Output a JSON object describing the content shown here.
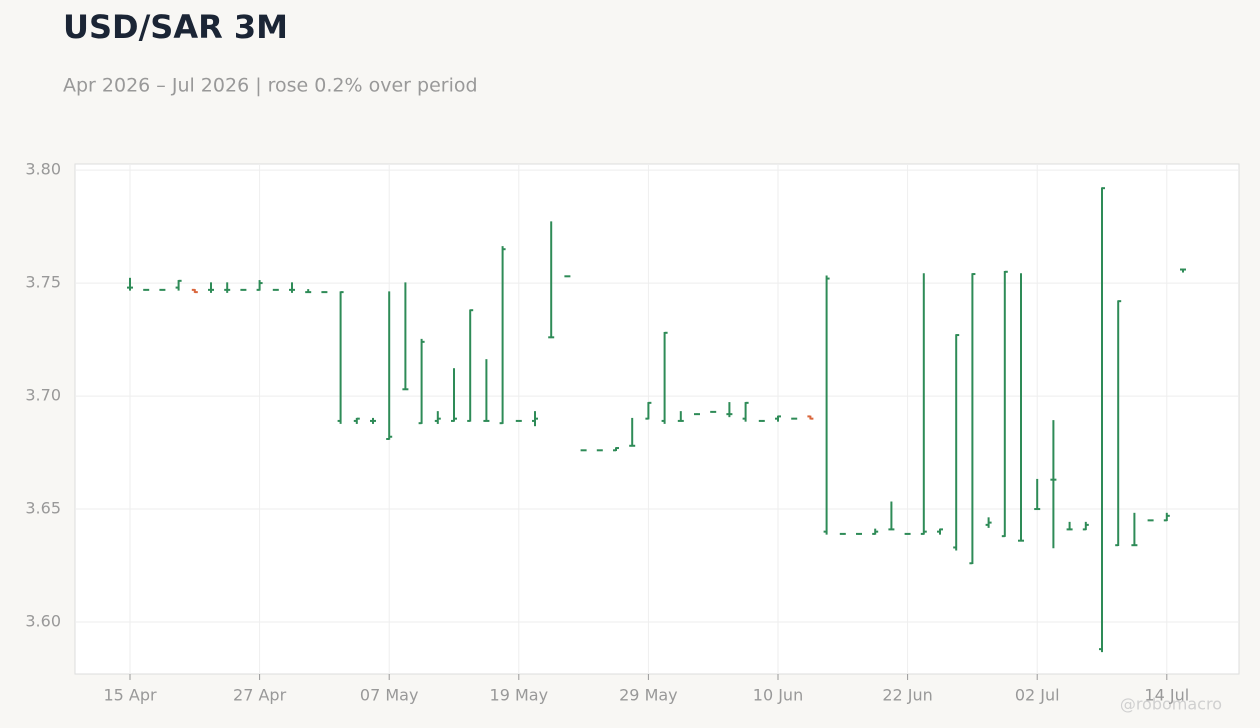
{
  "chart_data": {
    "type": "ohlc",
    "title": "USD/SAR 3M",
    "subtitle": "Apr 2026 – Jul 2026 | rose 0.2% over period",
    "watermark": "@robomacro",
    "categories": [
      "15 Apr",
      null,
      null,
      null,
      null,
      null,
      null,
      null,
      "27 Apr",
      null,
      null,
      null,
      null,
      null,
      null,
      null,
      "07 May",
      null,
      null,
      null,
      null,
      null,
      null,
      null,
      "19 May",
      null,
      null,
      null,
      null,
      null,
      null,
      null,
      "29 May",
      null,
      null,
      null,
      null,
      null,
      null,
      null,
      "10 Jun",
      null,
      null,
      null,
      null,
      null,
      null,
      null,
      "22 Jun",
      null,
      null,
      null,
      null,
      null,
      null,
      null,
      "02 Jul",
      null,
      null,
      null,
      null,
      null,
      null,
      null,
      "14 Jul",
      null
    ],
    "series": [
      {
        "up_color": "#2e8b57",
        "down_color": "#d9663c",
        "open": [
          3.748,
          3.747,
          3.747,
          3.748,
          3.747,
          3.747,
          3.747,
          3.747,
          3.747,
          3.747,
          3.747,
          3.746,
          3.746,
          3.689,
          3.689,
          3.689,
          3.681,
          3.703,
          3.688,
          3.689,
          3.689,
          3.689,
          3.689,
          3.688,
          3.689,
          3.689,
          3.726,
          3.753,
          3.676,
          3.676,
          3.676,
          3.678,
          3.69,
          3.689,
          3.689,
          3.692,
          3.693,
          3.692,
          3.69,
          3.689,
          3.69,
          3.69,
          3.691,
          3.64,
          3.639,
          3.639,
          3.639,
          3.641,
          3.639,
          3.639,
          3.64,
          3.633,
          3.626,
          3.643,
          3.638,
          3.636,
          3.65,
          3.663,
          3.641,
          3.641,
          3.588,
          3.634,
          3.634,
          3.645,
          3.645,
          3.756
        ],
        "high": [
          3.752,
          3.747,
          3.747,
          3.751,
          3.747,
          3.75,
          3.75,
          3.747,
          3.751,
          3.747,
          3.75,
          3.747,
          3.746,
          3.746,
          3.69,
          3.69,
          3.746,
          3.75,
          3.725,
          3.693,
          3.712,
          3.738,
          3.716,
          3.766,
          3.689,
          3.693,
          3.777,
          3.753,
          3.676,
          3.676,
          3.677,
          3.69,
          3.697,
          3.728,
          3.693,
          3.692,
          3.693,
          3.697,
          3.697,
          3.689,
          3.691,
          3.69,
          3.691,
          3.753,
          3.639,
          3.639,
          3.641,
          3.653,
          3.639,
          3.754,
          3.641,
          3.727,
          3.754,
          3.646,
          3.755,
          3.754,
          3.663,
          3.689,
          3.644,
          3.644,
          3.792,
          3.742,
          3.648,
          3.645,
          3.648,
          3.756
        ],
        "low": [
          3.747,
          3.747,
          3.747,
          3.747,
          3.746,
          3.746,
          3.746,
          3.747,
          3.747,
          3.747,
          3.746,
          3.746,
          3.746,
          3.688,
          3.688,
          3.688,
          3.681,
          3.703,
          3.688,
          3.688,
          3.689,
          3.689,
          3.689,
          3.688,
          3.689,
          3.687,
          3.726,
          3.753,
          3.676,
          3.676,
          3.676,
          3.678,
          3.69,
          3.688,
          3.689,
          3.692,
          3.693,
          3.691,
          3.689,
          3.689,
          3.689,
          3.69,
          3.69,
          3.639,
          3.639,
          3.639,
          3.639,
          3.641,
          3.639,
          3.639,
          3.639,
          3.632,
          3.626,
          3.642,
          3.638,
          3.636,
          3.65,
          3.633,
          3.641,
          3.641,
          3.587,
          3.634,
          3.634,
          3.645,
          3.645,
          3.755
        ],
        "close": [
          3.748,
          3.747,
          3.747,
          3.751,
          3.746,
          3.747,
          3.747,
          3.747,
          3.75,
          3.747,
          3.747,
          3.746,
          3.746,
          3.746,
          3.69,
          3.689,
          3.682,
          3.703,
          3.724,
          3.69,
          3.69,
          3.738,
          3.689,
          3.765,
          3.689,
          3.69,
          3.726,
          3.753,
          3.676,
          3.676,
          3.677,
          3.678,
          3.697,
          3.728,
          3.689,
          3.692,
          3.693,
          3.692,
          3.697,
          3.689,
          3.691,
          3.69,
          3.69,
          3.752,
          3.639,
          3.639,
          3.64,
          3.641,
          3.639,
          3.64,
          3.641,
          3.727,
          3.754,
          3.644,
          3.755,
          3.636,
          3.65,
          3.663,
          3.641,
          3.643,
          3.792,
          3.742,
          3.634,
          3.645,
          3.647,
          3.756
        ]
      }
    ],
    "ylim": [
      3.577,
      3.8027
    ],
    "yticks": [
      {
        "value": 3.6,
        "label": "3.60"
      },
      3.65,
      {
        "value": 3.7,
        "label": "3.70"
      },
      3.75,
      {
        "value": 3.8,
        "label": "3.80"
      }
    ],
    "grid": true
  }
}
